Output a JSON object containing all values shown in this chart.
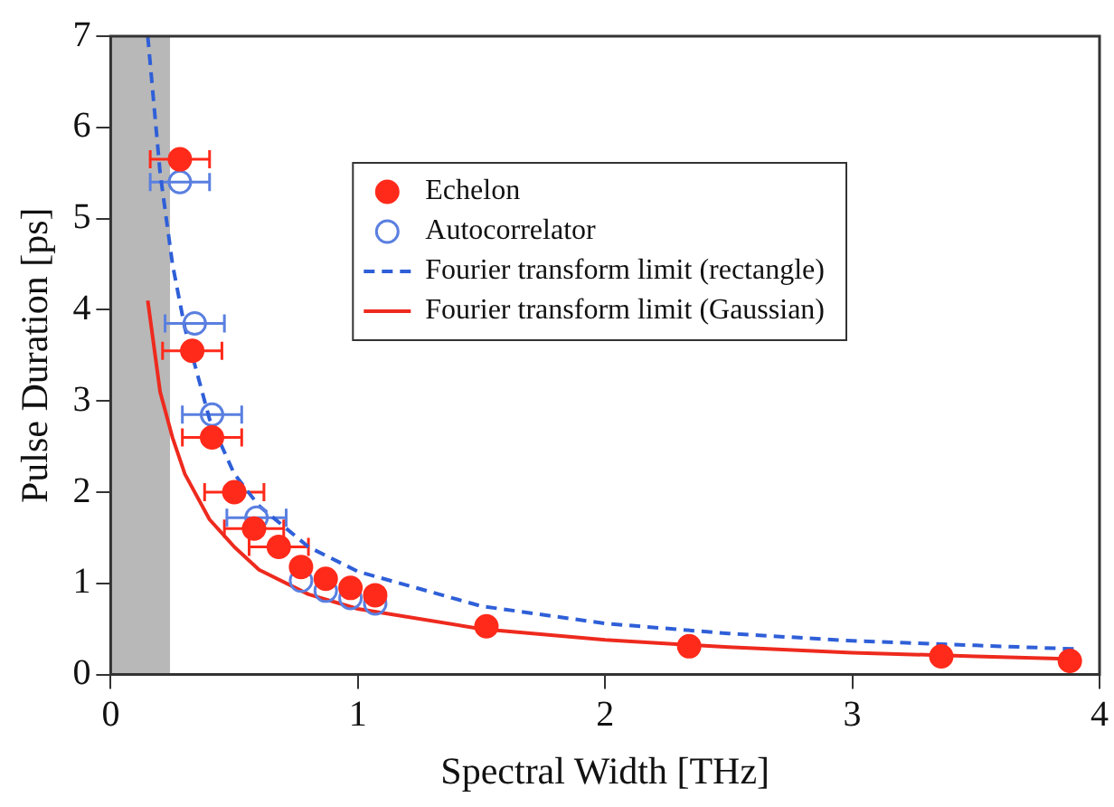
{
  "chart_data": {
    "type": "scatter",
    "xlabel": "Spectral Width [THz]",
    "ylabel": "Pulse Duration [ps]",
    "xlim": [
      0,
      4
    ],
    "ylim": [
      0,
      7
    ],
    "xticks": [
      0,
      1,
      2,
      3,
      4
    ],
    "yticks": [
      0,
      1,
      2,
      3,
      4,
      5,
      6,
      7
    ],
    "grid": false,
    "legend": "top right",
    "marker": "circle",
    "bands": [
      {
        "axis": "x",
        "from": 0,
        "to": 0.24,
        "color": "#b8b8b8"
      }
    ],
    "series": [
      {
        "name": "Echelon",
        "color": "#ff2a1a",
        "x": [
          0.28,
          0.33,
          0.41,
          0.5,
          0.58,
          0.68,
          0.77,
          0.87,
          0.97,
          1.07,
          1.52,
          2.34,
          3.36,
          3.88
        ],
        "values": [
          5.65,
          3.55,
          2.6,
          2.0,
          1.6,
          1.4,
          1.18,
          1.05,
          0.95,
          0.87,
          0.53,
          0.31,
          0.2,
          0.15
        ],
        "xerrors": [
          0.12,
          0.12,
          0.12,
          0.12,
          0.12,
          0.12,
          null,
          null,
          null,
          null,
          null,
          null,
          null,
          null
        ]
      },
      {
        "name": "Autocorrelator",
        "color": "#5a7fe0",
        "x": [
          0.28,
          0.34,
          0.41,
          0.59,
          0.77,
          0.87,
          0.97,
          1.07
        ],
        "values": [
          5.4,
          3.85,
          2.85,
          1.72,
          1.03,
          0.92,
          0.84,
          0.78
        ],
        "xerrors": [
          0.12,
          0.12,
          0.12,
          0.12,
          null,
          null,
          null,
          null
        ]
      },
      {
        "name": "Fourier transform limit (rectangle)",
        "type": "line",
        "color": "#2f5fd8",
        "marker": "none",
        "line_style": "dashed",
        "x": [
          0.15,
          0.2,
          0.25,
          0.3,
          0.4,
          0.5,
          0.6,
          0.8,
          1.0,
          1.5,
          2,
          2.5,
          3,
          3.5,
          3.9
        ],
        "values": [
          7,
          5.5,
          4.5,
          3.8,
          2.8,
          2.2,
          1.85,
          1.4,
          1.13,
          0.75,
          0.56,
          0.45,
          0.37,
          0.32,
          0.28
        ]
      },
      {
        "name": "Fourier transform limit (Gaussian)",
        "type": "line",
        "color": "#ee2a1e",
        "marker": "none",
        "line_style": "solid",
        "x": [
          0.15,
          0.2,
          0.25,
          0.3,
          0.4,
          0.5,
          0.6,
          0.8,
          1.0,
          1.5,
          2,
          2.5,
          3,
          3.5,
          3.9
        ],
        "values": [
          4.1,
          3.1,
          2.6,
          2.2,
          1.7,
          1.4,
          1.15,
          0.88,
          0.72,
          0.5,
          0.38,
          0.3,
          0.24,
          0.2,
          0.17
        ]
      }
    ]
  }
}
